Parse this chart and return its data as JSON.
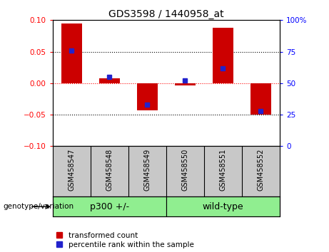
{
  "title": "GDS3598 / 1440958_at",
  "samples": [
    "GSM458547",
    "GSM458548",
    "GSM458549",
    "GSM458550",
    "GSM458551",
    "GSM458552"
  ],
  "red_bars": [
    0.095,
    0.008,
    -0.043,
    -0.004,
    0.088,
    -0.05
  ],
  "blue_squares": [
    76,
    55,
    33,
    52,
    62,
    28
  ],
  "groups": [
    {
      "label": "p300 +/-",
      "start": 0,
      "end": 3
    },
    {
      "label": "wild-type",
      "start": 3,
      "end": 6
    }
  ],
  "group_color": "#90EE90",
  "xlabels_color": "#C8C8C8",
  "ylim_left": [
    -0.1,
    0.1
  ],
  "ylim_right": [
    0,
    100
  ],
  "yticks_left": [
    -0.1,
    -0.05,
    0,
    0.05,
    0.1
  ],
  "yticks_right": [
    0,
    25,
    50,
    75,
    100
  ],
  "red_color": "#CC0000",
  "blue_color": "#2222CC",
  "hline_dotted": [
    0.05,
    -0.05
  ],
  "hline_dashed": 0.0,
  "bar_width": 0.55,
  "legend_red": "transformed count",
  "legend_blue": "percentile rank within the sample",
  "group_label": "genotype/variation"
}
